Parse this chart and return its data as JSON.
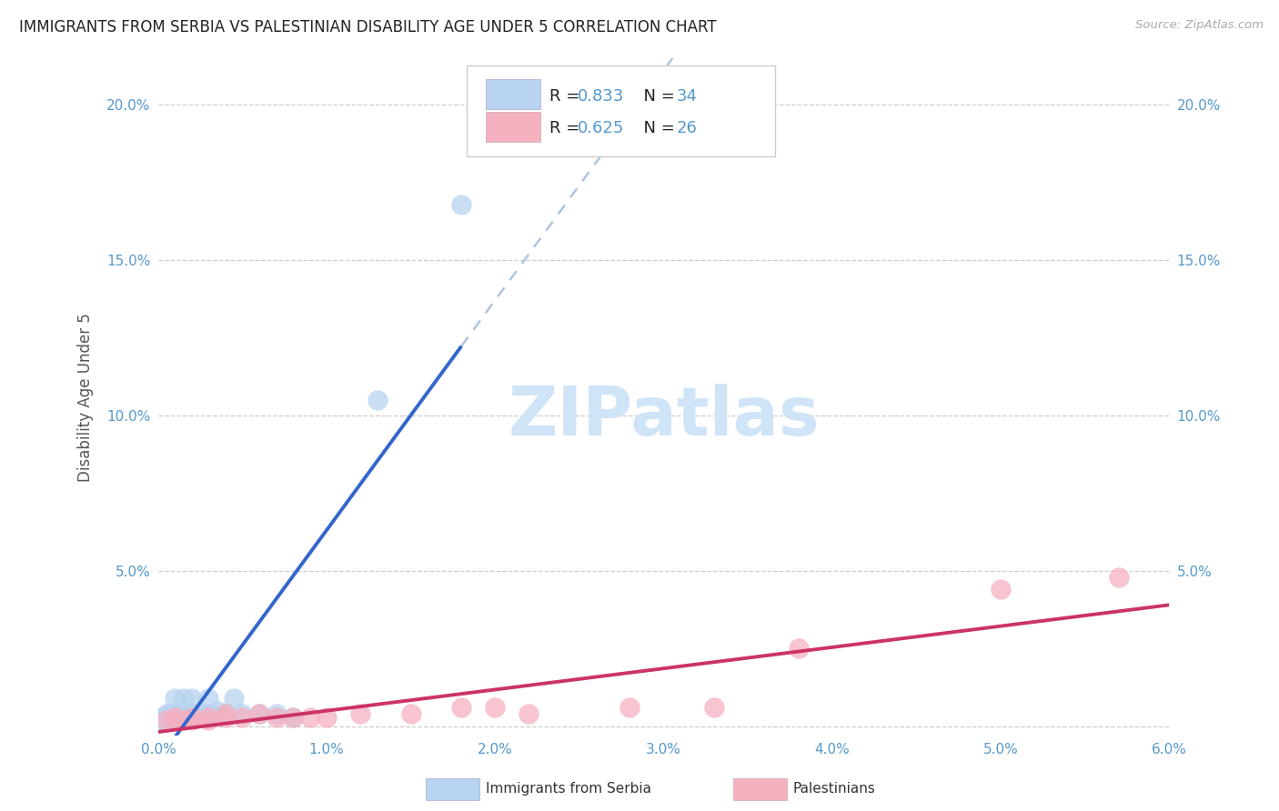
{
  "title": "IMMIGRANTS FROM SERBIA VS PALESTINIAN DISABILITY AGE UNDER 5 CORRELATION CHART",
  "source": "Source: ZipAtlas.com",
  "xlim": [
    0.0,
    0.06
  ],
  "ylim": [
    -0.003,
    0.215
  ],
  "serbia_R": 0.833,
  "serbia_N": 34,
  "palestinian_R": 0.625,
  "palestinian_N": 26,
  "serbia_color": "#b8d4f0",
  "serbia_line_color": "#3366cc",
  "serbian_dash_color": "#b0c4de",
  "palestinian_color": "#f5b0c0",
  "palestinian_line_color": "#cc3366",
  "axis_color": "#5599cc",
  "title_color": "#222222",
  "watermark_color": "#d0e4f8",
  "grid_color": "#cccccc",
  "ylabel": "Disability Age Under 5",
  "legend_label_1": "Immigrants from Serbia",
  "legend_label_2": "Palestinians",
  "serbia_x": [
    0.0002,
    0.0003,
    0.0004,
    0.0005,
    0.0005,
    0.0006,
    0.0007,
    0.0007,
    0.0008,
    0.0009,
    0.001,
    0.001,
    0.0012,
    0.0013,
    0.0015,
    0.0015,
    0.0017,
    0.002,
    0.002,
    0.0022,
    0.0025,
    0.003,
    0.003,
    0.0032,
    0.0035,
    0.004,
    0.004,
    0.0045,
    0.005,
    0.006,
    0.007,
    0.008,
    0.013,
    0.018
  ],
  "serbia_y": [
    0.002,
    0.003,
    0.002,
    0.003,
    0.004,
    0.002,
    0.003,
    0.004,
    0.003,
    0.004,
    0.003,
    0.009,
    0.003,
    0.004,
    0.004,
    0.009,
    0.003,
    0.004,
    0.009,
    0.004,
    0.004,
    0.004,
    0.009,
    0.004,
    0.005,
    0.004,
    0.004,
    0.009,
    0.004,
    0.004,
    0.004,
    0.003,
    0.105,
    0.168
  ],
  "pal_x": [
    0.0005,
    0.001,
    0.001,
    0.0015,
    0.002,
    0.002,
    0.003,
    0.003,
    0.004,
    0.004,
    0.005,
    0.006,
    0.007,
    0.008,
    0.009,
    0.01,
    0.012,
    0.015,
    0.018,
    0.02,
    0.022,
    0.028,
    0.033,
    0.038,
    0.05,
    0.057
  ],
  "pal_y": [
    0.002,
    0.002,
    0.003,
    0.002,
    0.003,
    0.002,
    0.003,
    0.002,
    0.003,
    0.004,
    0.003,
    0.004,
    0.003,
    0.003,
    0.003,
    0.003,
    0.004,
    0.004,
    0.006,
    0.006,
    0.004,
    0.006,
    0.006,
    0.025,
    0.044,
    0.048
  ]
}
